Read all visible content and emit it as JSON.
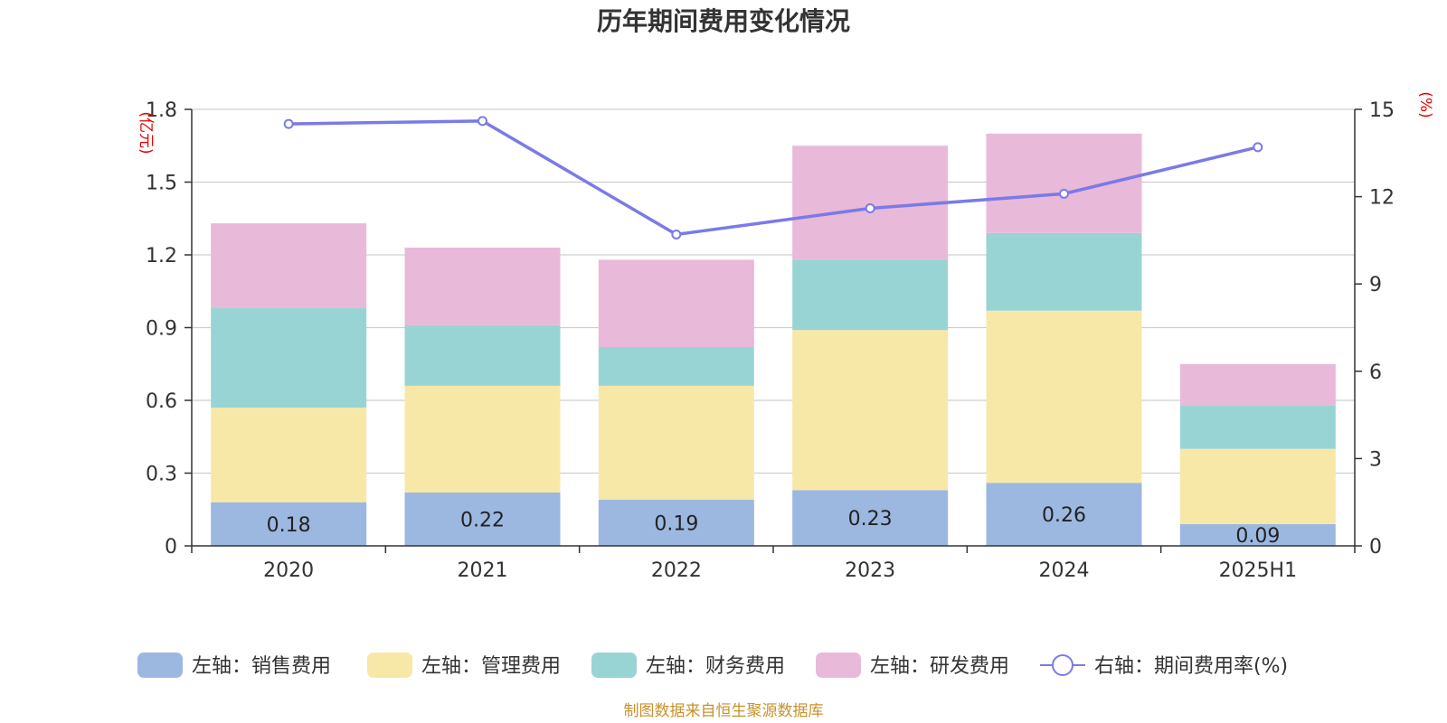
{
  "chart_data": {
    "type": "bar",
    "title": "历年期间费用变化情况",
    "categories": [
      "2020",
      "2021",
      "2022",
      "2023",
      "2024",
      "2025H1"
    ],
    "y_left": {
      "unit": "(亿元)",
      "range": [
        0,
        1.8
      ],
      "ticks": [
        "0",
        "0.3",
        "0.6",
        "0.9",
        "1.2",
        "1.5",
        "1.8"
      ]
    },
    "y_right": {
      "unit": "(%)",
      "range": [
        0,
        15
      ],
      "ticks": [
        "0",
        "3",
        "6",
        "9",
        "12",
        "15"
      ]
    },
    "stacked": true,
    "grid": true,
    "legend_position": "bottom",
    "series": [
      {
        "name": "左轴：销售费用",
        "axis": "left",
        "color": "#9cb8e1",
        "values": [
          0.18,
          0.22,
          0.19,
          0.23,
          0.26,
          0.09
        ],
        "labels": [
          "0.18",
          "0.22",
          "0.19",
          "0.23",
          "0.26",
          "0.09"
        ]
      },
      {
        "name": "左轴：管理费用",
        "axis": "left",
        "color": "#f8e8a8",
        "values": [
          0.39,
          0.44,
          0.47,
          0.66,
          0.71,
          0.31
        ]
      },
      {
        "name": "左轴：财务费用",
        "axis": "left",
        "color": "#99d4d5",
        "values": [
          0.41,
          0.25,
          0.16,
          0.29,
          0.32,
          0.18
        ]
      },
      {
        "name": "左轴：研发费用",
        "axis": "left",
        "color": "#e8b9d9",
        "values": [
          0.35,
          0.32,
          0.36,
          0.47,
          0.41,
          0.17
        ]
      }
    ],
    "line_series": {
      "name": "右轴：期间费用率(%)",
      "axis": "right",
      "color": "#7a7ae8",
      "values": [
        14.5,
        14.6,
        10.7,
        11.6,
        12.1,
        13.7
      ]
    }
  },
  "source": "制图数据来自恒生聚源数据库"
}
